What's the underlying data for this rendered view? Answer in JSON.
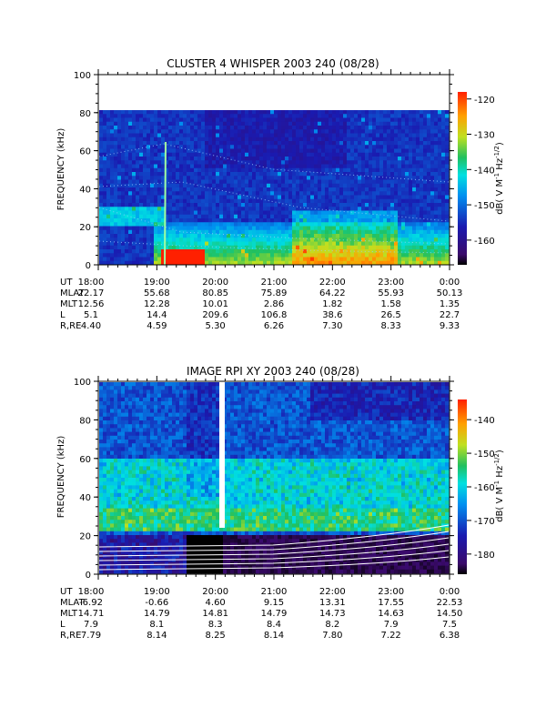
{
  "chart_data": [
    {
      "type": "heatmap",
      "title": "CLUSTER 4 WHISPER 2003 240 (08/28)",
      "ylabel": "FREQUENCY (kHz)",
      "ylim": [
        0,
        100
      ],
      "yticks": [
        0,
        20,
        40,
        60,
        80,
        100
      ],
      "xlim": [
        "18:00",
        "0:00"
      ],
      "data_top_khz": 80,
      "colorbar": {
        "label_parts": [
          "dB( V M",
          "-1",
          " Hz",
          "-1/2",
          ")"
        ],
        "range": [
          -167,
          -118
        ],
        "ticks": [
          -120,
          -130,
          -140,
          -150,
          -160
        ]
      },
      "ephemeris": {
        "rows": [
          {
            "label": "UT",
            "values": [
              "18:00",
              "19:00",
              "20:00",
              "21:00",
              "22:00",
              "23:00",
              "0:00"
            ]
          },
          {
            "label": "MLAT",
            "values": [
              "22.17",
              "55.68",
              "80.85",
              "75.89",
              "64.22",
              "55.93",
              "50.13"
            ]
          },
          {
            "label": "MLT",
            "values": [
              "12.56",
              "12.28",
              "10.01",
              "2.86",
              "1.82",
              "1.58",
              "1.35"
            ]
          },
          {
            "label": "L",
            "values": [
              "5.1",
              "14.4",
              "209.6",
              "106.8",
              "38.6",
              "26.5",
              "22.7"
            ]
          },
          {
            "label": "R,RE",
            "values": [
              "4.40",
              "4.59",
              "5.30",
              "6.26",
              "7.30",
              "8.33",
              "9.33"
            ]
          }
        ]
      }
    },
    {
      "type": "heatmap",
      "title": "IMAGE RPI XY 2003 240 (08/28)",
      "ylabel": "FREQUENCY (kHz)",
      "ylim": [
        0,
        100
      ],
      "yticks": [
        0,
        20,
        40,
        60,
        80,
        100
      ],
      "xlim": [
        "18:00",
        "0:00"
      ],
      "data_gap": [
        "20:10",
        "20:15"
      ],
      "colorbar": {
        "label_parts": [
          "dB( V M",
          "-1",
          " Hz",
          "-1/2",
          ")"
        ],
        "range": [
          -186,
          -134
        ],
        "ticks": [
          -140,
          -150,
          -160,
          -170,
          -180
        ]
      },
      "ephemeris": {
        "rows": [
          {
            "label": "UT",
            "values": [
              "18:00",
              "19:00",
              "20:00",
              "21:00",
              "22:00",
              "23:00",
              "0:00"
            ]
          },
          {
            "label": "MLAT",
            "values": [
              "-6.92",
              "-0.66",
              "4.60",
              "9.15",
              "13.31",
              "17.55",
              "22.53"
            ]
          },
          {
            "label": "MLT",
            "values": [
              "14.71",
              "14.79",
              "14.81",
              "14.79",
              "14.73",
              "14.63",
              "14.50"
            ]
          },
          {
            "label": "L",
            "values": [
              "7.9",
              "8.1",
              "8.3",
              "8.4",
              "8.2",
              "7.9",
              "7.5"
            ]
          },
          {
            "label": "R,RE",
            "values": [
              "7.79",
              "8.14",
              "8.25",
              "8.14",
              "7.80",
              "7.22",
              "6.38"
            ]
          }
        ]
      }
    }
  ]
}
